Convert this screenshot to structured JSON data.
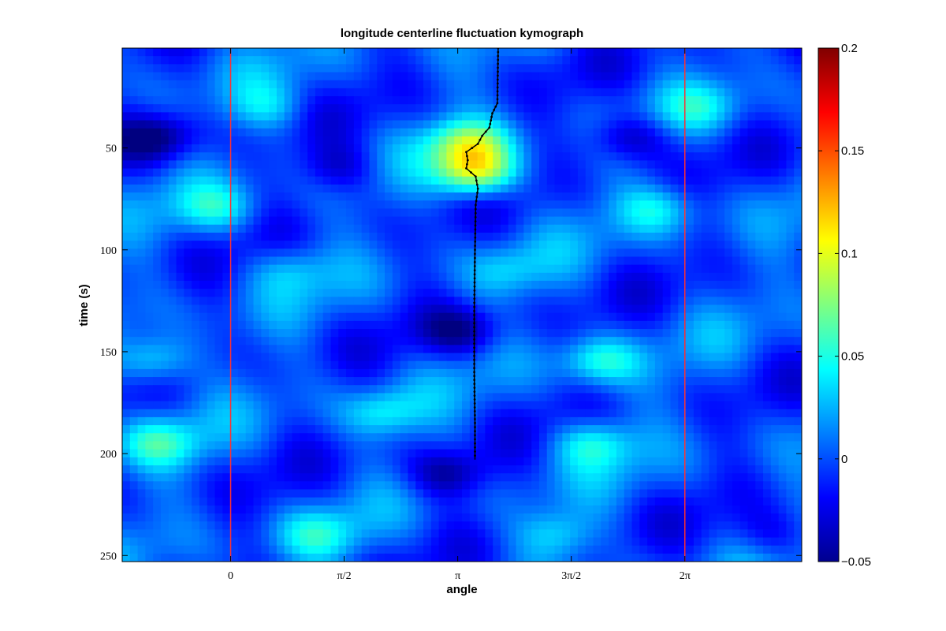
{
  "chart_data": {
    "type": "heatmap",
    "title": "longitude centerline fluctuation kymograph",
    "xlabel": "angle",
    "ylabel": "time (s)",
    "x_ticks": [
      {
        "value": 0,
        "label": "0"
      },
      {
        "value": 1.5708,
        "label": "π/2"
      },
      {
        "value": 3.1416,
        "label": "π"
      },
      {
        "value": 4.7124,
        "label": "3π/2"
      },
      {
        "value": 6.2832,
        "label": "2π"
      }
    ],
    "y_ticks": [
      50,
      100,
      150,
      200,
      250
    ],
    "xlim": [
      -1.5,
      7.9
    ],
    "ylim": [
      1,
      253
    ],
    "y_reversed": true,
    "colormap": "jet",
    "colorbar": {
      "range": [
        -0.05,
        0.2
      ],
      "ticks": [
        {
          "value": 0.2,
          "label": "0.2"
        },
        {
          "value": 0.15,
          "label": "0.15"
        },
        {
          "value": 0.1,
          "label": "0.1"
        },
        {
          "value": 0.05,
          "label": "0.05"
        },
        {
          "value": 0,
          "label": "0"
        },
        {
          "value": -0.05,
          "label": "−0.05"
        }
      ]
    },
    "reference_lines": {
      "color": "#ff3030",
      "x": [
        0,
        6.2832
      ]
    },
    "centerline": {
      "color": "#000000",
      "points": [
        {
          "t": 1,
          "angle": 3.7
        },
        {
          "t": 28,
          "angle": 3.69
        },
        {
          "t": 33,
          "angle": 3.62
        },
        {
          "t": 40,
          "angle": 3.58
        },
        {
          "t": 44,
          "angle": 3.48
        },
        {
          "t": 48,
          "angle": 3.42
        },
        {
          "t": 52,
          "angle": 3.26
        },
        {
          "t": 56,
          "angle": 3.28
        },
        {
          "t": 60,
          "angle": 3.26
        },
        {
          "t": 64,
          "angle": 3.39
        },
        {
          "t": 70,
          "angle": 3.42
        },
        {
          "t": 78,
          "angle": 3.39
        },
        {
          "t": 100,
          "angle": 3.38
        },
        {
          "t": 130,
          "angle": 3.37
        },
        {
          "t": 160,
          "angle": 3.37
        },
        {
          "t": 185,
          "angle": 3.38
        },
        {
          "t": 203,
          "angle": 3.38
        }
      ]
    },
    "hotspots": [
      {
        "angle": 3.4,
        "t": 62,
        "value": 0.095
      },
      {
        "angle": 3.3,
        "t": 48,
        "value": 0.07
      },
      {
        "angle": -1.1,
        "t": 155,
        "value": 0.05
      },
      {
        "angle": 5.1,
        "t": 155,
        "value": 0.05
      },
      {
        "angle": -1.0,
        "t": 195,
        "value": 0.045
      },
      {
        "angle": 5.0,
        "t": 195,
        "value": 0.045
      },
      {
        "angle": 2.1,
        "t": 180,
        "value": 0.04
      },
      {
        "angle": 5.9,
        "t": 80,
        "value": 0.04
      },
      {
        "angle": -0.2,
        "t": 80,
        "value": 0.04
      },
      {
        "angle": 1.2,
        "t": 240,
        "value": 0.035
      },
      {
        "angle": 4.5,
        "t": 240,
        "value": 0.035
      },
      {
        "angle": 3.8,
        "t": 110,
        "value": 0.025
      },
      {
        "angle": 0.8,
        "t": 110,
        "value": 0.025
      },
      {
        "angle": 6.5,
        "t": 30,
        "value": 0.03
      },
      {
        "angle": 0.5,
        "t": 30,
        "value": 0.03
      }
    ],
    "coldspots": [
      {
        "angle": -1.0,
        "t": 45,
        "value": -0.045
      },
      {
        "angle": 5.5,
        "t": 45,
        "value": -0.045
      },
      {
        "angle": 3.2,
        "t": 140,
        "value": -0.04
      },
      {
        "angle": 3.0,
        "t": 210,
        "value": -0.04
      },
      {
        "angle": 1.5,
        "t": 60,
        "value": -0.03
      },
      {
        "angle": 7.5,
        "t": 240,
        "value": -0.025
      }
    ]
  }
}
